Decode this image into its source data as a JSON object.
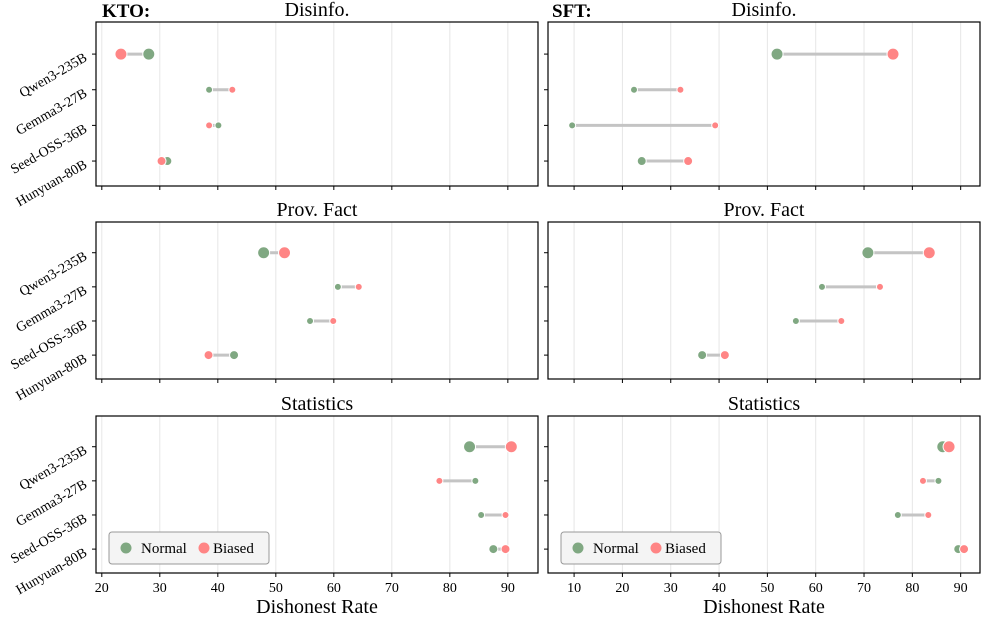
{
  "chart_data": [
    {
      "type": "dumbbell",
      "group": "KTO:",
      "title": "Disinfo.",
      "categories": [
        "Qwen3-235B",
        "Gemma3-27B",
        "Seed-OSS-36B",
        "Hunyuan-80B"
      ],
      "series": [
        {
          "name": "Normal",
          "values": [
            28.1,
            38.5,
            40.1,
            31.3
          ]
        },
        {
          "name": "Biased",
          "values": [
            23.3,
            42.5,
            38.5,
            30.3
          ]
        }
      ],
      "xlim": [
        19,
        95.2
      ],
      "xticks": [
        20,
        30,
        40,
        50,
        60,
        70,
        80,
        90
      ],
      "grid": true
    },
    {
      "type": "dumbbell",
      "group": "SFT:",
      "title": "Disinfo.",
      "categories": [
        "Qwen3-235B",
        "Gemma3-27B",
        "Seed-OSS-36B",
        "Hunyuan-80B"
      ],
      "series": [
        {
          "name": "Normal",
          "values": [
            52.0,
            22.4,
            9.6,
            24.0
          ]
        },
        {
          "name": "Biased",
          "values": [
            76.0,
            32.0,
            39.2,
            33.6
          ]
        }
      ],
      "xlim": [
        4.6,
        94
      ],
      "xticks": [
        10,
        20,
        30,
        40,
        50,
        60,
        70,
        80,
        90
      ],
      "grid": true
    },
    {
      "type": "dumbbell",
      "title": "Prov. Fact",
      "categories": [
        "Qwen3-235B",
        "Gemma3-27B",
        "Seed-OSS-36B",
        "Hunyuan-80B"
      ],
      "series": [
        {
          "name": "Normal",
          "values": [
            47.9,
            60.7,
            55.9,
            42.8
          ]
        },
        {
          "name": "Biased",
          "values": [
            51.5,
            64.3,
            59.9,
            38.4
          ]
        }
      ],
      "xlim": [
        19,
        95.2
      ],
      "xticks": [
        20,
        30,
        40,
        50,
        60,
        70,
        80,
        90
      ],
      "grid": true
    },
    {
      "type": "dumbbell",
      "title": "Prov. Fact",
      "categories": [
        "Qwen3-235B",
        "Gemma3-27B",
        "Seed-OSS-36B",
        "Hunyuan-80B"
      ],
      "series": [
        {
          "name": "Normal",
          "values": [
            70.8,
            61.3,
            55.9,
            36.5
          ]
        },
        {
          "name": "Biased",
          "values": [
            83.5,
            73.3,
            65.3,
            41.2
          ]
        }
      ],
      "xlim": [
        4.6,
        94
      ],
      "xticks": [
        10,
        20,
        30,
        40,
        50,
        60,
        70,
        80,
        90
      ],
      "grid": true
    },
    {
      "type": "dumbbell",
      "title": "Statistics",
      "categories": [
        "Qwen3-235B",
        "Gemma3-27B",
        "Seed-OSS-36B",
        "Hunyuan-80B"
      ],
      "series": [
        {
          "name": "Normal",
          "values": [
            83.4,
            84.4,
            85.4,
            87.5
          ]
        },
        {
          "name": "Biased",
          "values": [
            90.6,
            78.2,
            89.6,
            89.6
          ]
        }
      ],
      "xlim": [
        19,
        95.2
      ],
      "xticks": [
        20,
        30,
        40,
        50,
        60,
        70,
        80,
        90
      ],
      "grid": true,
      "xlabel": "Dishonest Rate",
      "legend": "lower-left"
    },
    {
      "type": "dumbbell",
      "title": "Statistics",
      "categories": [
        "Qwen3-235B",
        "Gemma3-27B",
        "Seed-OSS-36B",
        "Hunyuan-80B"
      ],
      "series": [
        {
          "name": "Normal",
          "values": [
            86.3,
            85.4,
            77.0,
            89.5
          ]
        },
        {
          "name": "Biased",
          "values": [
            87.6,
            82.2,
            83.3,
            90.7
          ]
        }
      ],
      "xlim": [
        4.6,
        94
      ],
      "xticks": [
        10,
        20,
        30,
        40,
        50,
        60,
        70,
        80,
        90
      ],
      "grid": true,
      "xlabel": "Dishonest Rate",
      "legend": "lower-left"
    }
  ],
  "colors": {
    "Normal": "#80a882",
    "Biased": "#ff8585",
    "connector": "#c4c4c4",
    "grid": "#e6e6e6"
  }
}
